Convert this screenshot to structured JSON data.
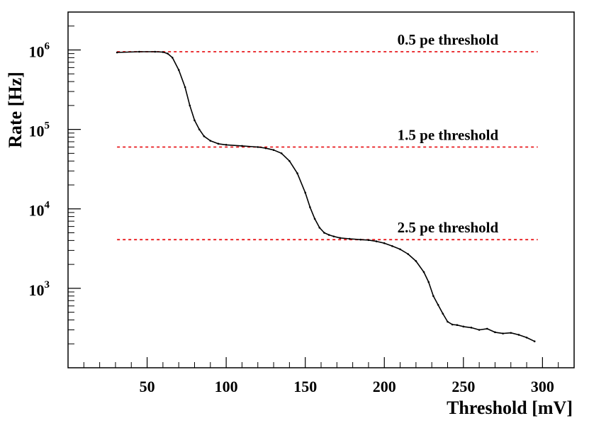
{
  "chart_data": {
    "type": "line",
    "title": "",
    "xlabel": "Threshold [mV]",
    "ylabel": "Rate [Hz]",
    "xlim": [
      0,
      320
    ],
    "ylim": [
      100,
      3000000
    ],
    "yscale": "log",
    "x_ticks": [
      {
        "value": 50,
        "label": "50"
      },
      {
        "value": 100,
        "label": "100"
      },
      {
        "value": 150,
        "label": "150"
      },
      {
        "value": 200,
        "label": "200"
      },
      {
        "value": 250,
        "label": "250"
      },
      {
        "value": 300,
        "label": "300"
      }
    ],
    "y_ticks": [
      {
        "value": 1000,
        "base": "10",
        "exp": "3"
      },
      {
        "value": 10000,
        "base": "10",
        "exp": "4"
      },
      {
        "value": 100000,
        "base": "10",
        "exp": "5"
      },
      {
        "value": 1000000,
        "base": "10",
        "exp": "6"
      }
    ],
    "series": [
      {
        "name": "Rate",
        "color": "#000000",
        "x": [
          31,
          45,
          55,
          60,
          63,
          66,
          70,
          74,
          77,
          80,
          83,
          86,
          90,
          95,
          100,
          110,
          120,
          125,
          130,
          135,
          140,
          145,
          150,
          153,
          156,
          159,
          162,
          165,
          168,
          172,
          178,
          185,
          190,
          195,
          200,
          205,
          210,
          215,
          220,
          225,
          228,
          231,
          234,
          237,
          240,
          243,
          246,
          250,
          255,
          260,
          265,
          270,
          275,
          280,
          285,
          290,
          295
        ],
        "values": [
          930000,
          950000,
          950000,
          940000,
          900000,
          800000,
          560000,
          340000,
          200000,
          130000,
          100000,
          82000,
          72000,
          66000,
          64000,
          62000,
          60000,
          58000,
          55000,
          50000,
          40000,
          28000,
          16000,
          10500,
          7500,
          5800,
          5000,
          4700,
          4500,
          4300,
          4200,
          4100,
          4050,
          3900,
          3700,
          3400,
          3100,
          2700,
          2200,
          1600,
          1200,
          800,
          620,
          480,
          380,
          350,
          345,
          330,
          320,
          300,
          310,
          280,
          270,
          275,
          260,
          240,
          215
        ]
      }
    ],
    "reference_lines": [
      {
        "value": 950000,
        "label": "0.5 pe threshold",
        "color": "#e8191c"
      },
      {
        "value": 60000,
        "label": "1.5 pe threshold",
        "color": "#e8191c"
      },
      {
        "value": 4100,
        "label": "2.5 pe threshold",
        "color": "#e8191c"
      }
    ],
    "reference_line_range": [
      31,
      297
    ],
    "grid": false,
    "legend": "none"
  }
}
